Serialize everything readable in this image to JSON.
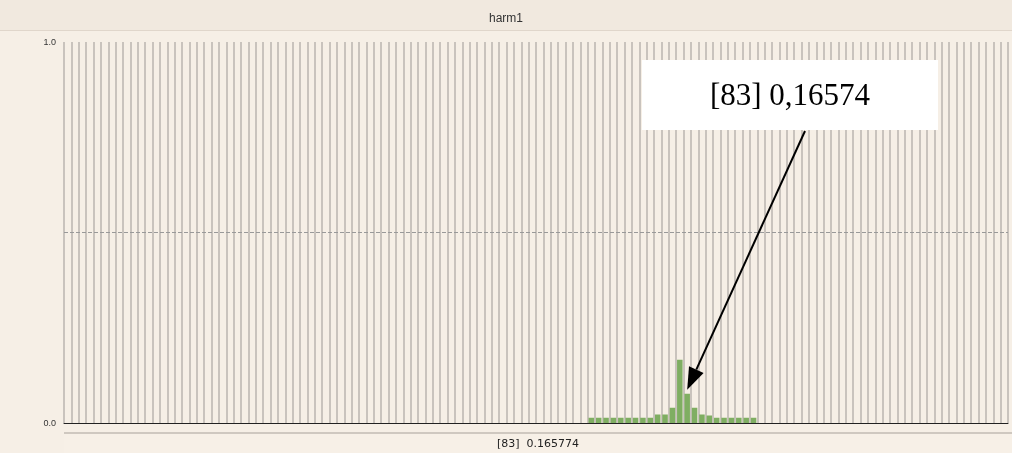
{
  "chart_data": {
    "type": "bar",
    "title": "harm1",
    "categories": [
      null,
      null,
      null,
      null,
      null,
      null,
      null,
      null,
      null,
      null,
      null,
      null,
      null,
      null,
      null,
      null,
      null,
      null,
      null,
      null,
      null,
      null,
      null,
      null,
      null,
      null,
      null,
      null,
      null,
      null,
      null,
      null,
      null,
      null,
      null,
      null,
      null,
      null,
      null,
      null,
      null,
      null,
      null,
      null,
      null,
      null,
      null,
      null,
      null,
      null,
      null,
      null,
      null,
      null,
      null,
      null,
      null,
      null,
      null,
      null,
      null,
      null,
      null,
      null,
      null,
      null,
      null,
      null,
      null,
      null,
      null,
      null,
      null,
      null,
      null,
      null,
      null,
      null,
      null,
      null,
      null,
      null,
      null,
      null,
      null,
      null,
      null,
      null,
      null,
      null,
      null,
      null,
      null,
      null,
      null,
      null,
      null,
      null,
      null,
      null,
      null,
      null,
      null,
      null,
      null,
      null,
      null,
      null,
      null,
      null,
      null,
      null,
      null,
      null,
      null,
      null,
      null,
      null,
      null,
      null,
      null,
      null,
      null,
      null,
      null,
      null,
      null,
      null
    ],
    "values": [
      0,
      0,
      0,
      0,
      0,
      0,
      0,
      0,
      0,
      0,
      0,
      0,
      0,
      0,
      0,
      0,
      0,
      0,
      0,
      0,
      0,
      0,
      0,
      0,
      0,
      0,
      0,
      0,
      0,
      0,
      0,
      0,
      0,
      0,
      0,
      0,
      0,
      0,
      0,
      0,
      0,
      0,
      0,
      0,
      0,
      0,
      0,
      0,
      0,
      0,
      0,
      0,
      0,
      0,
      0,
      0,
      0,
      0,
      0,
      0,
      0,
      0,
      0,
      0,
      0,
      0,
      0,
      0,
      0,
      0,
      0,
      0.014,
      0.014,
      0.014,
      0.014,
      0.014,
      0.014,
      0.014,
      0.014,
      0.014,
      0.022,
      0.022,
      0.04,
      0.166,
      0.077,
      0.04,
      0.022,
      0.02,
      0.014,
      0.014,
      0.014,
      0.014,
      0.014,
      0.014,
      0,
      0,
      0,
      0,
      0,
      0,
      0,
      0,
      0,
      0,
      0,
      0,
      0,
      0,
      0,
      0,
      0,
      0,
      0,
      0,
      0,
      0,
      0,
      0,
      0,
      0,
      0,
      0,
      0,
      0,
      0,
      0,
      0,
      0
    ],
    "color": "#7fae62",
    "ylim": [
      0,
      1
    ],
    "yticks": [
      {
        "value": 0,
        "label": "0.0"
      },
      {
        "value": 1,
        "label": "1.0"
      }
    ],
    "grid": "x",
    "ref_lines": [
      {
        "axis": "y",
        "value": 0.5,
        "color": "#999999",
        "line_style": "dashed"
      }
    ],
    "annotations": [
      "[83]  0.165774",
      "[83] 0,16574"
    ]
  }
}
